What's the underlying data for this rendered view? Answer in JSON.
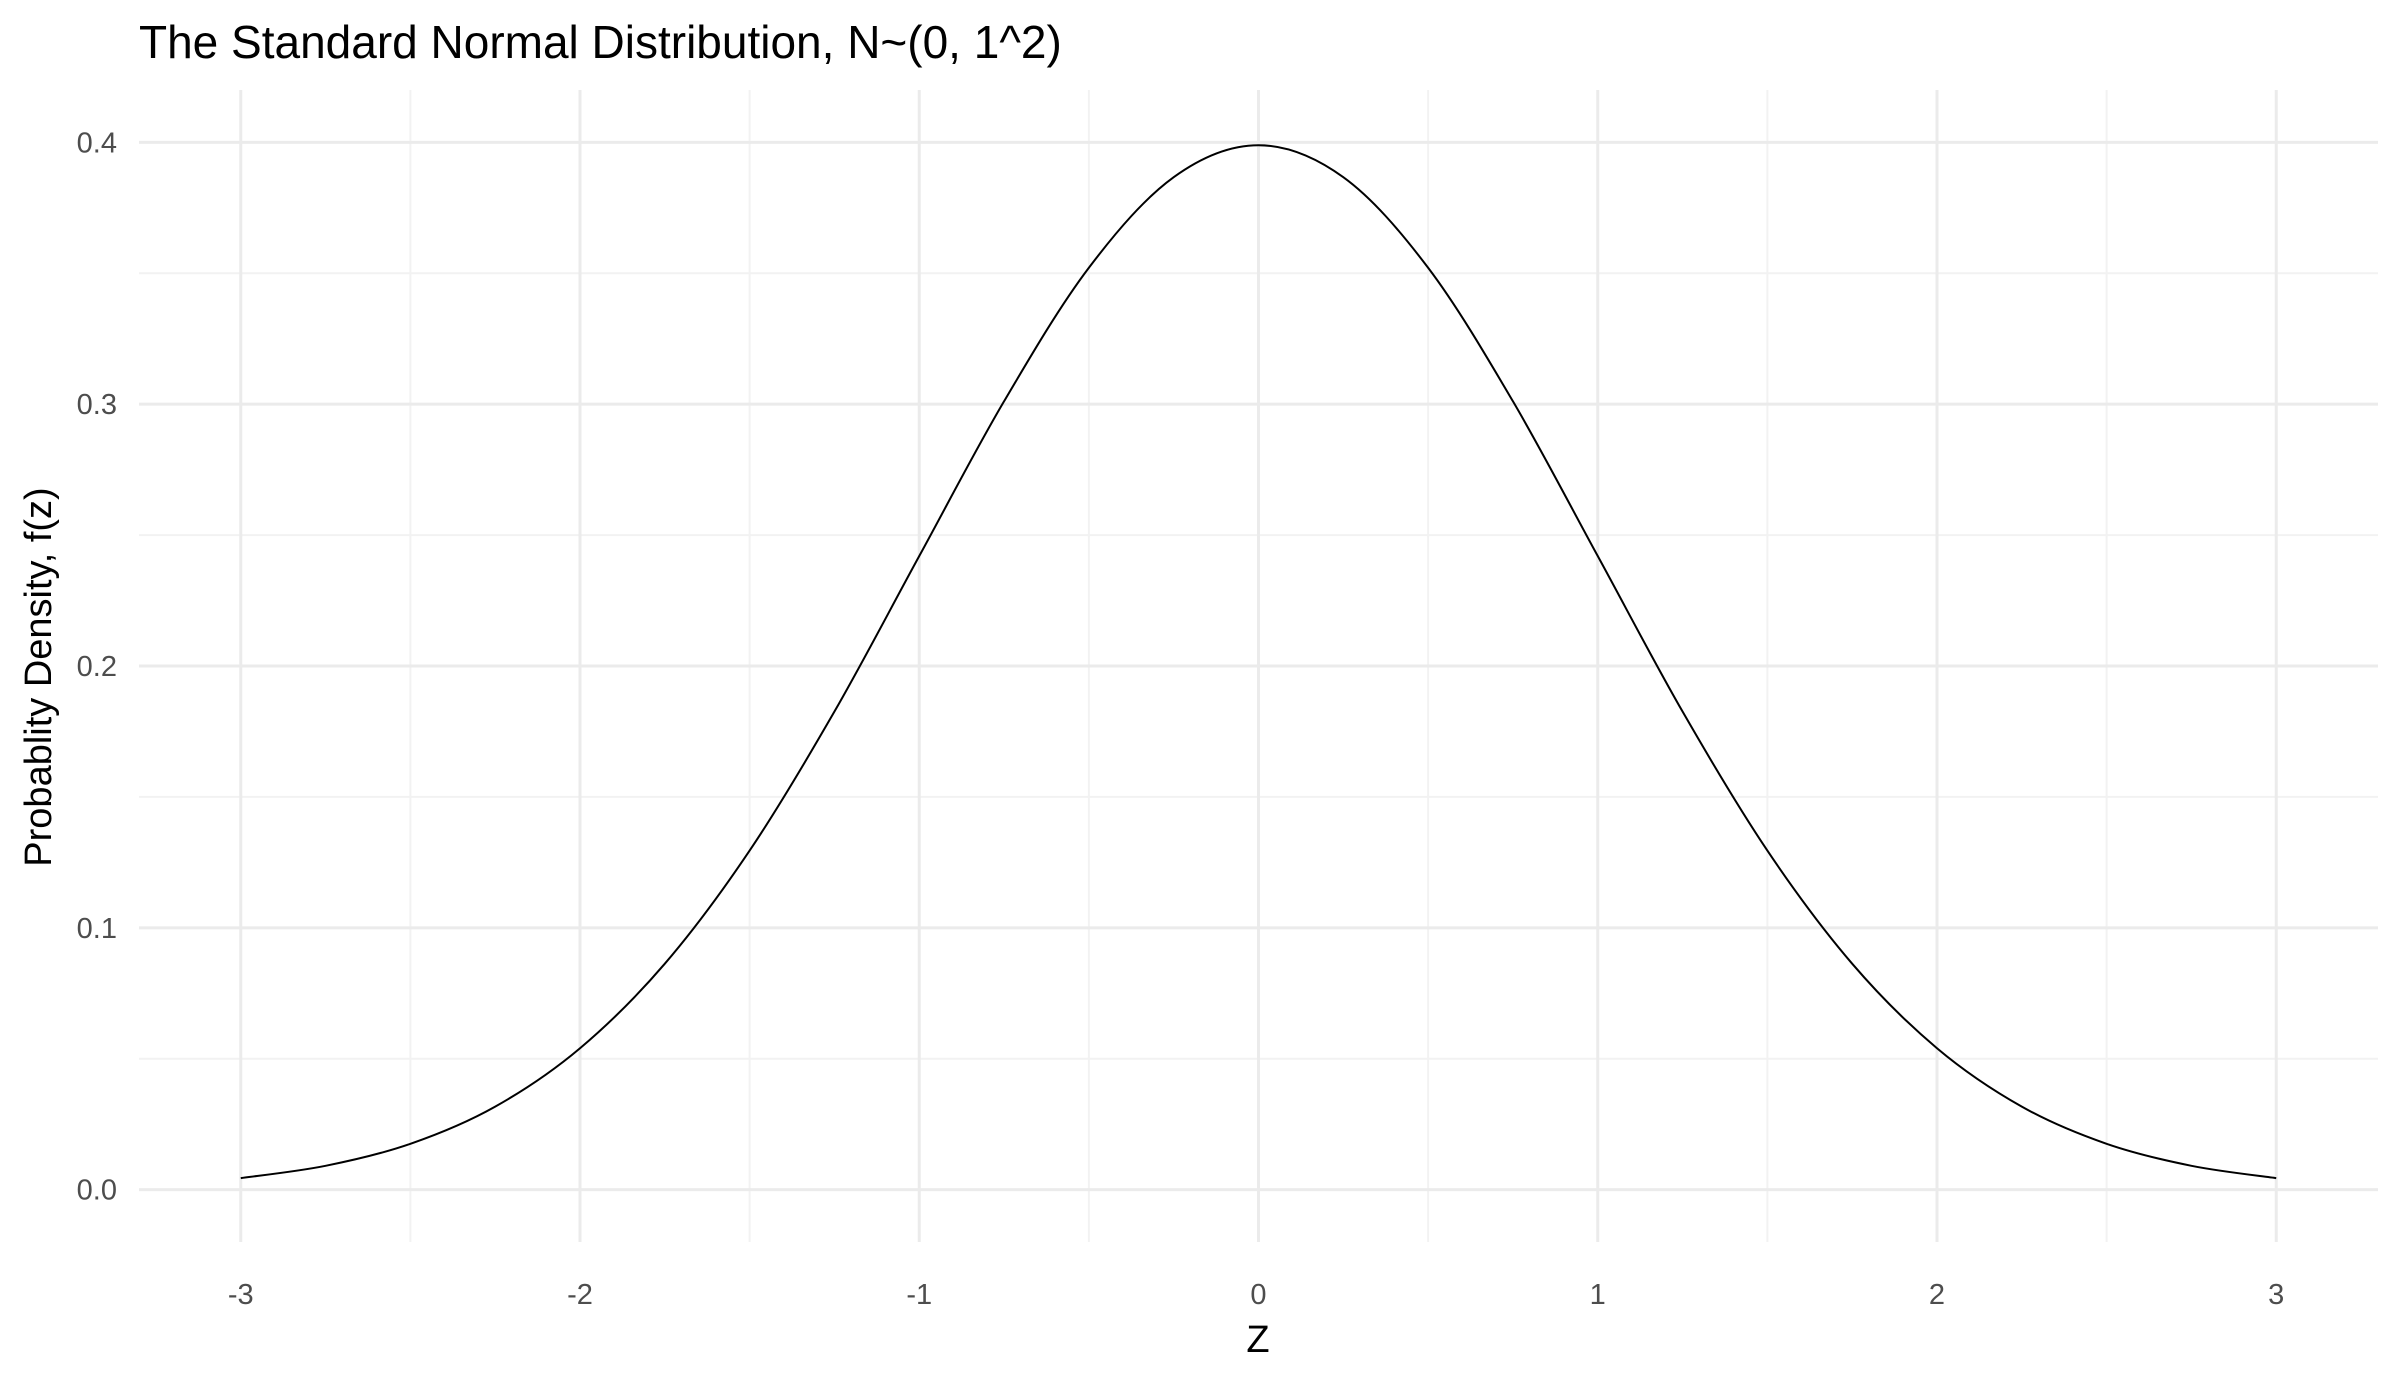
{
  "chart_data": {
    "type": "line",
    "title": "The Standard Normal Distribution, N~(0, 1^2)",
    "xlabel": "Z",
    "ylabel": "Probablity Density, f(z)",
    "xlim": [
      -3.3,
      3.3
    ],
    "ylim": [
      -0.02,
      0.42
    ],
    "x_ticks": [
      -3,
      -2,
      -1,
      0,
      1,
      2,
      3
    ],
    "x_tick_labels": [
      "-3",
      "-2",
      "-1",
      "0",
      "1",
      "2",
      "3"
    ],
    "y_ticks": [
      0.0,
      0.1,
      0.2,
      0.3,
      0.4
    ],
    "y_tick_labels": [
      "0.0",
      "0.1",
      "0.2",
      "0.3",
      "0.4"
    ],
    "grid": true,
    "legend": "none",
    "line_color": "#000000",
    "series": [
      {
        "x": [
          -3.0,
          -2.75,
          -2.5,
          -2.25,
          -2.0,
          -1.75,
          -1.5,
          -1.25,
          -1.0,
          -0.75,
          -0.5,
          -0.25,
          0.0,
          0.25,
          0.5,
          0.75,
          1.0,
          1.25,
          1.5,
          1.75,
          2.0,
          2.25,
          2.5,
          2.75,
          3.0
        ],
        "y": [
          0.0044,
          0.0091,
          0.0175,
          0.0317,
          0.054,
          0.0863,
          0.1295,
          0.1826,
          0.242,
          0.3011,
          0.3521,
          0.3867,
          0.3989,
          0.3867,
          0.3521,
          0.3011,
          0.242,
          0.1826,
          0.1295,
          0.0863,
          0.054,
          0.0317,
          0.0175,
          0.0091,
          0.0044
        ]
      }
    ]
  }
}
